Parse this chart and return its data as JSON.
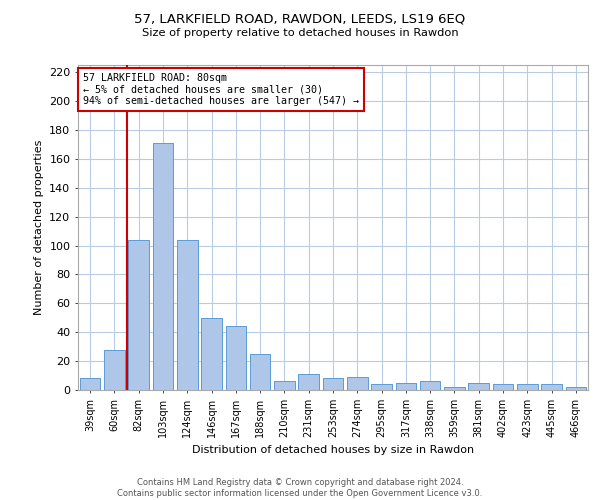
{
  "title": "57, LARKFIELD ROAD, RAWDON, LEEDS, LS19 6EQ",
  "subtitle": "Size of property relative to detached houses in Rawdon",
  "xlabel": "Distribution of detached houses by size in Rawdon",
  "ylabel": "Number of detached properties",
  "bar_color": "#aec6e8",
  "bar_edge_color": "#5b9bd5",
  "annotation_line_color": "#cc0000",
  "annotation_box_color": "#cc0000",
  "background_color": "#ffffff",
  "grid_color": "#b8cce4",
  "categories": [
    "39sqm",
    "60sqm",
    "82sqm",
    "103sqm",
    "124sqm",
    "146sqm",
    "167sqm",
    "188sqm",
    "210sqm",
    "231sqm",
    "253sqm",
    "274sqm",
    "295sqm",
    "317sqm",
    "338sqm",
    "359sqm",
    "381sqm",
    "402sqm",
    "423sqm",
    "445sqm",
    "466sqm"
  ],
  "values": [
    8,
    28,
    104,
    171,
    104,
    50,
    44,
    25,
    6,
    11,
    8,
    9,
    4,
    5,
    6,
    2,
    5,
    4,
    4,
    4,
    2
  ],
  "ylim": [
    0,
    225
  ],
  "yticks": [
    0,
    20,
    40,
    60,
    80,
    100,
    120,
    140,
    160,
    180,
    200,
    220
  ],
  "annotation_text": "57 LARKFIELD ROAD: 80sqm\n← 5% of detached houses are smaller (30)\n94% of semi-detached houses are larger (547) →",
  "vline_x": 1.5,
  "footer_line1": "Contains HM Land Registry data © Crown copyright and database right 2024.",
  "footer_line2": "Contains public sector information licensed under the Open Government Licence v3.0."
}
